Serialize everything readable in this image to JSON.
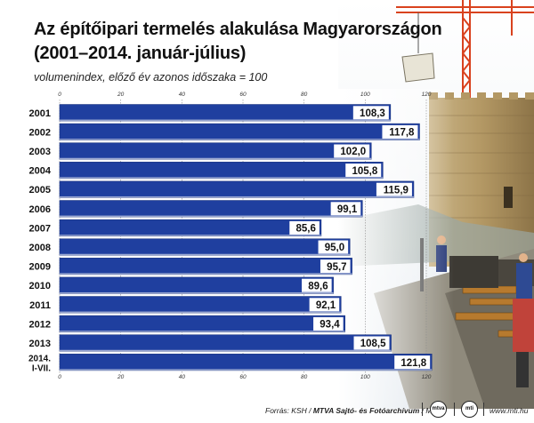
{
  "title_line1": "Az építőipari termelés alakulása Magyarországon",
  "title_line2": "(2001–2014. január-július)",
  "subtitle": "volumenindex, előző év azonos időszaka = 100",
  "source_prefix": "Forrás: KSH / ",
  "source_agency": "MTVA Sajtó- és Fotóarchívum",
  "source_suffix": " / MTI",
  "website": "www.mti.hu",
  "logo1": "mtva",
  "logo2": "mti",
  "colors": {
    "bar": "#1f3f9f",
    "bar_edge": "#16307e",
    "label_bg": "#ffffff",
    "text": "#111111"
  },
  "chart_data": {
    "type": "bar",
    "orientation": "horizontal",
    "categories": [
      "2001",
      "2002",
      "2003",
      "2004",
      "2005",
      "2006",
      "2007",
      "2008",
      "2009",
      "2010",
      "2011",
      "2012",
      "2013",
      "2014.\nI-VII."
    ],
    "values": [
      108.3,
      117.8,
      102.0,
      105.8,
      115.9,
      99.1,
      85.6,
      95.0,
      95.7,
      89.6,
      92.1,
      93.4,
      108.5,
      121.8
    ],
    "value_labels": [
      "108,3",
      "117,8",
      "102,0",
      "105,8",
      "115,9",
      "99,1",
      "85,6",
      "95,0",
      "95,7",
      "89,6",
      "92,1",
      "93,4",
      "108,5",
      "121,8"
    ],
    "xlim": [
      0,
      120
    ],
    "xticks": [
      0,
      20,
      40,
      60,
      80,
      100,
      120
    ],
    "grid": true,
    "legend": "none"
  }
}
